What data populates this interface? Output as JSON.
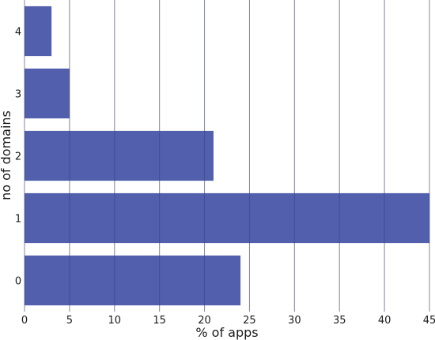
{
  "chart_data": {
    "type": "bar",
    "orientation": "horizontal",
    "categories": [
      "0",
      "1",
      "2",
      "3",
      "4"
    ],
    "values": [
      24,
      45,
      21,
      5,
      3
    ],
    "xlabel": "% of apps",
    "ylabel": "no of domains",
    "xlim": [
      0,
      45
    ],
    "xticks": [
      "0",
      "5",
      "10",
      "15",
      "20",
      "25",
      "30",
      "35",
      "40",
      "45"
    ],
    "grid": "vertical",
    "bar_color": "#4856a8",
    "grid_color": "#b5b5b5"
  }
}
